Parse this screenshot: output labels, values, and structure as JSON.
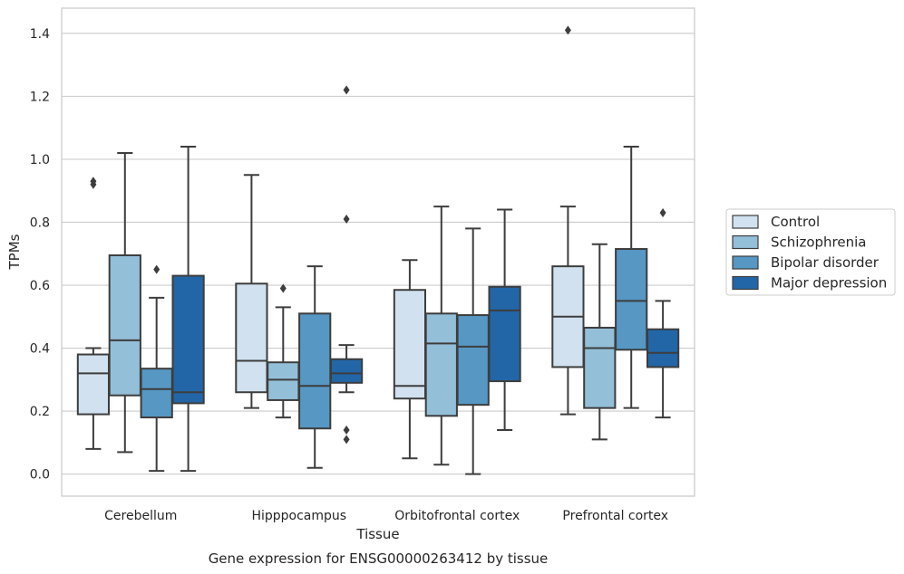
{
  "chart_data": {
    "type": "box",
    "title": "",
    "caption": "Gene expression for ENSG00000263412 by tissue",
    "xlabel": "Tissue",
    "ylabel": "TPMs",
    "ylim": [
      -0.07,
      1.48
    ],
    "yticks": [
      0.0,
      0.2,
      0.4,
      0.6,
      0.8,
      1.0,
      1.2,
      1.4
    ],
    "grid": "horizontal",
    "legend_position": "right",
    "categories": [
      "Cerebellum",
      "Hipppocampus",
      "Orbitofrontal cortex",
      "Prefrontal cortex"
    ],
    "series": [
      {
        "name": "Control",
        "color": "#d1e1f0",
        "boxes": [
          {
            "whislo": 0.08,
            "q1": 0.19,
            "med": 0.32,
            "q3": 0.38,
            "whishi": 0.4,
            "fliers": [
              0.92,
              0.93
            ]
          },
          {
            "whislo": 0.21,
            "q1": 0.26,
            "med": 0.36,
            "q3": 0.605,
            "whishi": 0.95,
            "fliers": []
          },
          {
            "whislo": 0.05,
            "q1": 0.24,
            "med": 0.28,
            "q3": 0.585,
            "whishi": 0.68,
            "fliers": []
          },
          {
            "whislo": 0.19,
            "q1": 0.34,
            "med": 0.5,
            "q3": 0.66,
            "whishi": 0.85,
            "fliers": [
              1.41
            ]
          }
        ]
      },
      {
        "name": "Schizophrenia",
        "color": "#94bfd9",
        "boxes": [
          {
            "whislo": 0.07,
            "q1": 0.25,
            "med": 0.425,
            "q3": 0.695,
            "whishi": 1.02,
            "fliers": []
          },
          {
            "whislo": 0.18,
            "q1": 0.235,
            "med": 0.3,
            "q3": 0.355,
            "whishi": 0.53,
            "fliers": [
              0.59
            ]
          },
          {
            "whislo": 0.03,
            "q1": 0.185,
            "med": 0.415,
            "q3": 0.51,
            "whishi": 0.85,
            "fliers": []
          },
          {
            "whislo": 0.11,
            "q1": 0.21,
            "med": 0.4,
            "q3": 0.465,
            "whishi": 0.73,
            "fliers": []
          }
        ]
      },
      {
        "name": "Bipolar disorder",
        "color": "#5697c4",
        "boxes": [
          {
            "whislo": 0.01,
            "q1": 0.18,
            "med": 0.27,
            "q3": 0.335,
            "whishi": 0.56,
            "fliers": [
              0.65
            ]
          },
          {
            "whislo": 0.02,
            "q1": 0.145,
            "med": 0.28,
            "q3": 0.51,
            "whishi": 0.66,
            "fliers": []
          },
          {
            "whislo": 0.0,
            "q1": 0.22,
            "med": 0.405,
            "q3": 0.505,
            "whishi": 0.78,
            "fliers": []
          },
          {
            "whislo": 0.21,
            "q1": 0.395,
            "med": 0.55,
            "q3": 0.715,
            "whishi": 1.04,
            "fliers": []
          }
        ]
      },
      {
        "name": "Major depression",
        "color": "#2266a8",
        "boxes": [
          {
            "whislo": 0.01,
            "q1": 0.225,
            "med": 0.26,
            "q3": 0.63,
            "whishi": 1.04,
            "fliers": []
          },
          {
            "whislo": 0.26,
            "q1": 0.29,
            "med": 0.32,
            "q3": 0.365,
            "whishi": 0.41,
            "fliers": [
              1.22,
              0.81,
              0.14,
              0.11
            ]
          },
          {
            "whislo": 0.14,
            "q1": 0.295,
            "med": 0.52,
            "q3": 0.595,
            "whishi": 0.84,
            "fliers": []
          },
          {
            "whislo": 0.18,
            "q1": 0.34,
            "med": 0.385,
            "q3": 0.46,
            "whishi": 0.55,
            "fliers": [
              0.83
            ]
          }
        ]
      }
    ]
  }
}
